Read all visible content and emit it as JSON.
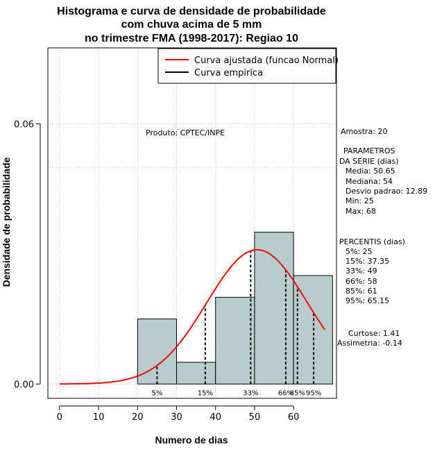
{
  "chart_data": {
    "type": "histogram",
    "title_lines": [
      "Histograma e curva de densidade de probabilidade",
      "com chuva acima de 5 mm",
      "no trimestre FMA (1998-2017): Regiao 10"
    ],
    "xlabel": "Numero de dias",
    "ylabel": "Densidade de probabilidade",
    "x_ticks": [
      0,
      10,
      20,
      30,
      40,
      50,
      60
    ],
    "y_ticks": [
      {
        "value": 0,
        "label": "0.00"
      },
      {
        "value": 0.06,
        "label": "0.06"
      }
    ],
    "xlim": [
      -3,
      71
    ],
    "ylim": [
      -0.0033,
      0.0775
    ],
    "bins": [
      {
        "start": 20,
        "end": 30,
        "density": 0.015
      },
      {
        "start": 30,
        "end": 40,
        "density": 0.005
      },
      {
        "start": 40,
        "end": 50,
        "density": 0.02
      },
      {
        "start": 50,
        "end": 60,
        "density": 0.035
      },
      {
        "start": 60,
        "end": 70,
        "density": 0.025
      }
    ],
    "normal_curve": {
      "mean": 50.65,
      "sd": 12.89,
      "x_range": [
        0,
        68
      ]
    },
    "percentiles": [
      {
        "label": "5%",
        "x": 25
      },
      {
        "label": "15%",
        "x": 37.35
      },
      {
        "label": "33%",
        "x": 49
      },
      {
        "label": "66%",
        "x": 58
      },
      {
        "label": "85%",
        "x": 61
      },
      {
        "label": "95%",
        "x": 65.15
      }
    ],
    "legend": [
      {
        "label": "Curva ajustada (funcao Normal)",
        "color": "#ff0000"
      },
      {
        "label": "Curva empirica",
        "color": "#000000"
      }
    ],
    "legend_position": "top-right",
    "grid": true,
    "colors": {
      "bar_fill": "#b7cdcd",
      "curve": "#ff0000"
    }
  },
  "annotations": {
    "produto": "Produto: CPTEC/INPE",
    "amostra": "Amostra: 20",
    "parametros_lines": [
      "PARAMETROS",
      "DA SERIE (dias)",
      "Media: 50.65",
      "Mediana: 54",
      "Desvio padrao: 12.89",
      "Min: 25",
      "Max: 68"
    ],
    "percentis_lines": [
      "PERCENTIS (dias)",
      "5%: 25",
      "15%: 37.35",
      "33%: 49",
      "66%: 58",
      "85%: 61",
      "95%: 65.15"
    ],
    "curtose": "Curtose: 1.41",
    "assimetria": "Assimetria: -0.14"
  }
}
